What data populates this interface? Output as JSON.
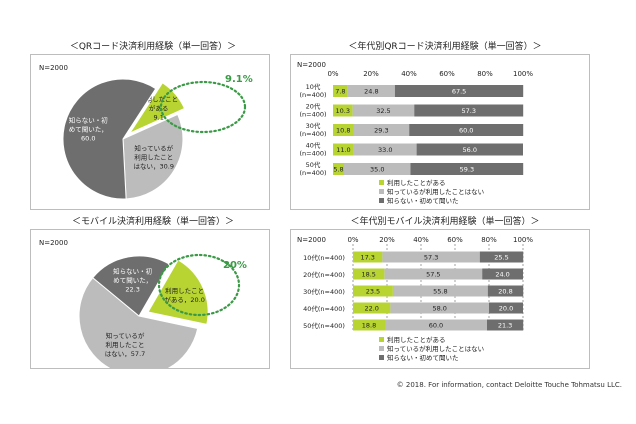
{
  "copyright": "© 2018. For information, contact Deloitte Touche Tohmatsu LLC.",
  "colors": {
    "used": "#b7d433",
    "known": "#bcbcbc",
    "unknown": "#6e6e6e",
    "highlight": "#3a9a45"
  },
  "chart_data": [
    {
      "type": "pie",
      "title": "＜QRコード決済利用経験（単一回答）＞",
      "n_label": "N=2000",
      "slices": [
        {
          "label_lines": [
            "利用したこと",
            "がある",
            "9.1"
          ],
          "value": 9.1,
          "color": "#b7d433"
        },
        {
          "label_lines": [
            "知っているが",
            "利用したこと",
            "はない，30.9"
          ],
          "value": 30.9,
          "color": "#bcbcbc"
        },
        {
          "label_lines": [
            "知らない・初",
            "めて聞いた，",
            "60.0"
          ],
          "value": 60.0,
          "color": "#6e6e6e"
        }
      ],
      "callout": "9.1%"
    },
    {
      "type": "bar",
      "stacked": true,
      "title": "＜年代別QRコード決済利用経験（単一回答）＞",
      "n_label": "N=2000",
      "ticks": [
        "0%",
        "20%",
        "40%",
        "60%",
        "80%",
        "100%"
      ],
      "categories": [
        {
          "line1": "10代",
          "line2": "(n=400)"
        },
        {
          "line1": "20代",
          "line2": "(n=400)"
        },
        {
          "line1": "30代",
          "line2": "(n=400)"
        },
        {
          "line1": "40代",
          "line2": "(n=400)"
        },
        {
          "line1": "50代",
          "line2": "(n=400)"
        }
      ],
      "series": [
        {
          "name": "利用したことがある",
          "values": [
            7.8,
            10.3,
            10.8,
            11.0,
            5.8
          ],
          "color": "#b7d433"
        },
        {
          "name": "知っているが利用したことはない",
          "values": [
            24.8,
            32.5,
            29.3,
            33.0,
            35.0
          ],
          "color": "#bcbcbc"
        },
        {
          "name": "知らない・初めて聞いた",
          "values": [
            67.5,
            57.3,
            60.0,
            56.0,
            59.3
          ],
          "color": "#6e6e6e"
        }
      ]
    },
    {
      "type": "pie",
      "title": "＜モバイル決済利用経験（単一回答）＞",
      "n_label": "N=2000",
      "slices": [
        {
          "label_lines": [
            "利用したこと",
            "がある，20.0"
          ],
          "value": 20.0,
          "color": "#b7d433"
        },
        {
          "label_lines": [
            "知っているが",
            "利用したこと",
            "はない，57.7"
          ],
          "value": 57.7,
          "color": "#bcbcbc"
        },
        {
          "label_lines": [
            "知らない・初",
            "めて聞いた，",
            "22.3"
          ],
          "value": 22.3,
          "color": "#6e6e6e"
        }
      ],
      "callout": "20%"
    },
    {
      "type": "bar",
      "stacked": true,
      "title": "＜年代別モバイル決済利用経験（単一回答）＞",
      "n_label": "N=2000",
      "ticks": [
        "0%",
        "20%",
        "40%",
        "60%",
        "80%",
        "100%"
      ],
      "categories": [
        {
          "line1": "10代(n=400)"
        },
        {
          "line1": "20代(n=400)"
        },
        {
          "line1": "30代(n=400)"
        },
        {
          "line1": "40代(n=400)"
        },
        {
          "line1": "50代(n=400)"
        }
      ],
      "series": [
        {
          "name": "利用したことがある",
          "values": [
            17.3,
            18.5,
            23.5,
            22.0,
            18.8
          ],
          "color": "#b7d433"
        },
        {
          "name": "知っているが利用したことはない",
          "values": [
            57.3,
            57.5,
            55.8,
            58.0,
            60.0
          ],
          "color": "#bcbcbc"
        },
        {
          "name": "知らない・初めて聞いた",
          "values": [
            25.5,
            24.0,
            20.8,
            20.0,
            21.3
          ],
          "color": "#6e6e6e"
        }
      ]
    }
  ]
}
